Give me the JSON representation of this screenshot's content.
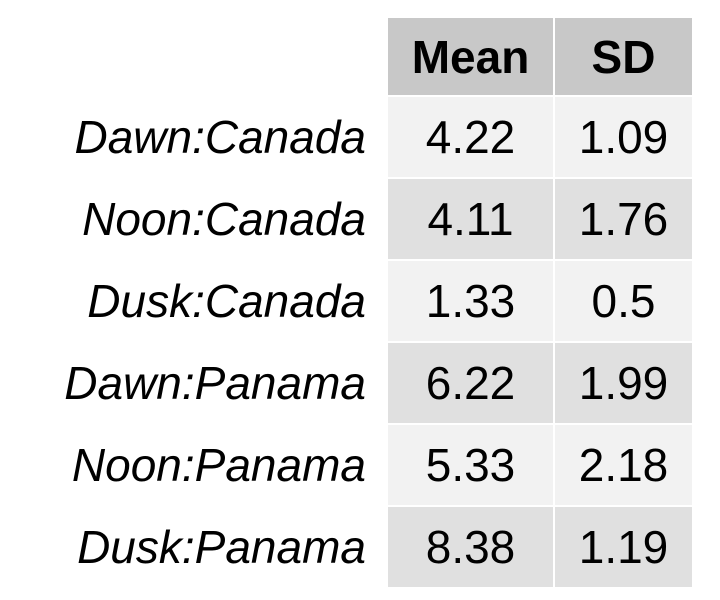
{
  "chart_data": {
    "type": "table",
    "columns": [
      "Mean",
      "SD"
    ],
    "rows": [
      {
        "label": "Dawn:Canada",
        "values": [
          "4.22",
          "1.09"
        ]
      },
      {
        "label": "Noon:Canada",
        "values": [
          "4.11",
          "1.76"
        ]
      },
      {
        "label": "Dusk:Canada",
        "values": [
          "1.33",
          "0.5"
        ]
      },
      {
        "label": "Dawn:Panama",
        "values": [
          "6.22",
          "1.99"
        ]
      },
      {
        "label": "Noon:Panama",
        "values": [
          "5.33",
          "2.18"
        ]
      },
      {
        "label": "Dusk:Panama",
        "values": [
          "8.38",
          "1.19"
        ]
      }
    ]
  },
  "colors": {
    "header_fill": "#c8c8c8",
    "row_fill_light": "#f2f2f2",
    "row_fill_dark": "#e0e0e0",
    "text": "#000000",
    "background": "#ffffff"
  }
}
